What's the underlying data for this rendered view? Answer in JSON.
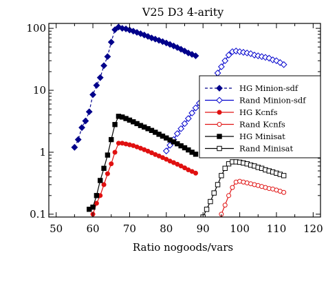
{
  "chart_data": {
    "type": "line",
    "title": "V25 D3  4-arity",
    "xlabel": "Ratio nogoods/vars",
    "ylabel": "",
    "x_range": [
      48,
      122
    ],
    "y_range": [
      0.09,
      120
    ],
    "y_scale": "log",
    "x_ticks": [
      "50",
      "60",
      "70",
      "80",
      "90",
      "100",
      "110",
      "120"
    ],
    "y_ticks": [
      "0.1",
      "1",
      "10",
      "100"
    ],
    "legend_position": "right",
    "series": [
      {
        "name": "HG Minion-sdf",
        "color": "#00008b",
        "marker": "diamond-filled",
        "line": "dashed",
        "x": [
          55,
          56,
          57,
          58,
          59,
          60,
          61,
          62,
          63,
          64,
          65,
          66,
          67,
          68,
          69,
          70,
          71,
          72,
          73,
          74,
          75,
          76,
          77,
          78,
          79,
          80,
          81,
          82,
          83,
          84,
          85,
          86,
          87,
          88
        ],
        "y": [
          1.2,
          1.6,
          2.5,
          3.2,
          4.5,
          8.5,
          12,
          16,
          25,
          35,
          60,
          95,
          105,
          100,
          98,
          94,
          90,
          86,
          82,
          78,
          74,
          70,
          67,
          64,
          61,
          58,
          55,
          52,
          49,
          46,
          43,
          40,
          38,
          36
        ]
      },
      {
        "name": "Rand Minion-sdf",
        "color": "#0000cd",
        "marker": "diamond-open",
        "line": "solid",
        "x": [
          80,
          81,
          82,
          83,
          84,
          85,
          86,
          87,
          88,
          89,
          90,
          91,
          92,
          93,
          94,
          95,
          96,
          97,
          98,
          99,
          100,
          101,
          102,
          103,
          104,
          105,
          106,
          107,
          108,
          109,
          110,
          111,
          112
        ],
        "y": [
          1.05,
          1.3,
          1.6,
          2.0,
          2.4,
          2.9,
          3.5,
          4.3,
          5.2,
          6.2,
          7.6,
          9.3,
          12,
          15,
          19,
          24,
          30,
          37,
          42,
          43,
          42,
          41,
          40,
          39,
          37,
          36,
          35,
          34,
          33,
          31,
          30,
          28,
          26
        ]
      },
      {
        "name": "HG Kcnfs",
        "color": "#e01010",
        "marker": "circle-filled",
        "line": "solid",
        "x": [
          60,
          61,
          62,
          63,
          64,
          65,
          66,
          67,
          68,
          69,
          70,
          71,
          72,
          73,
          74,
          75,
          76,
          77,
          78,
          79,
          80,
          81,
          82,
          83,
          84,
          85,
          86,
          87,
          88
        ],
        "y": [
          0.1,
          0.15,
          0.2,
          0.3,
          0.45,
          0.65,
          1.0,
          1.4,
          1.4,
          1.36,
          1.32,
          1.28,
          1.22,
          1.16,
          1.1,
          1.04,
          0.98,
          0.92,
          0.87,
          0.82,
          0.77,
          0.72,
          0.68,
          0.64,
          0.6,
          0.56,
          0.52,
          0.49,
          0.46
        ]
      },
      {
        "name": "Rand Kcnfs",
        "color": "#e01010",
        "marker": "circle-open",
        "line": "solid",
        "x": [
          95,
          96,
          97,
          98,
          99,
          100,
          101,
          102,
          103,
          104,
          105,
          106,
          107,
          108,
          109,
          110,
          111,
          112
        ],
        "y": [
          0.1,
          0.14,
          0.2,
          0.27,
          0.33,
          0.34,
          0.33,
          0.32,
          0.31,
          0.3,
          0.29,
          0.28,
          0.27,
          0.26,
          0.255,
          0.245,
          0.235,
          0.225
        ]
      },
      {
        "name": "HG Minisat",
        "color": "#000000",
        "marker": "square-filled",
        "line": "solid",
        "x": [
          59,
          60,
          61,
          62,
          63,
          64,
          65,
          66,
          67,
          68,
          69,
          70,
          71,
          72,
          73,
          74,
          75,
          76,
          77,
          78,
          79,
          80,
          81,
          82,
          83,
          84,
          85,
          86,
          87,
          88
        ],
        "y": [
          0.12,
          0.13,
          0.2,
          0.35,
          0.55,
          0.9,
          1.6,
          2.8,
          3.8,
          3.7,
          3.5,
          3.3,
          3.1,
          2.9,
          2.7,
          2.55,
          2.4,
          2.25,
          2.1,
          1.95,
          1.82,
          1.7,
          1.58,
          1.47,
          1.37,
          1.27,
          1.18,
          1.09,
          1.0,
          0.93
        ]
      },
      {
        "name": "Rand Minisat",
        "color": "#000000",
        "marker": "square-open",
        "line": "solid",
        "x": [
          90,
          91,
          92,
          93,
          94,
          95,
          96,
          97,
          98,
          99,
          100,
          101,
          102,
          103,
          104,
          105,
          106,
          107,
          108,
          109,
          110,
          111,
          112
        ],
        "y": [
          0.09,
          0.12,
          0.16,
          0.22,
          0.3,
          0.42,
          0.55,
          0.65,
          0.7,
          0.7,
          0.69,
          0.67,
          0.65,
          0.62,
          0.6,
          0.57,
          0.55,
          0.52,
          0.5,
          0.48,
          0.46,
          0.44,
          0.42
        ]
      }
    ]
  }
}
